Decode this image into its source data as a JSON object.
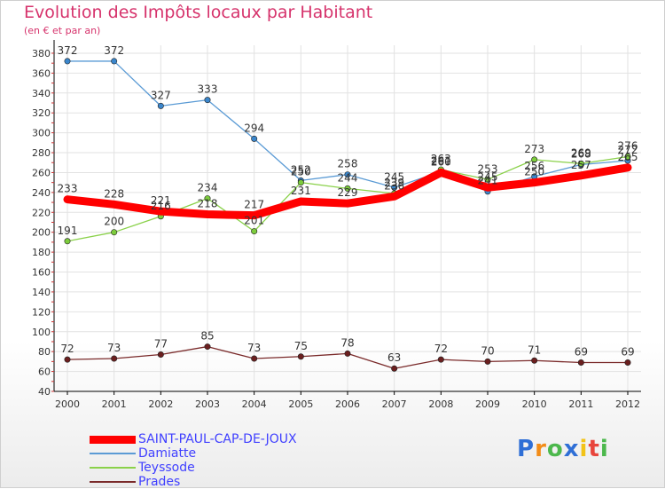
{
  "chart_data": {
    "type": "line",
    "title": "Evolution des Impôts locaux par Habitant",
    "subtitle": "(en € et par an)",
    "categories": [
      "2000",
      "2001",
      "2002",
      "2003",
      "2004",
      "2005",
      "2006",
      "2007",
      "2008",
      "2009",
      "2010",
      "2011",
      "2012"
    ],
    "yticks": [
      40,
      60,
      80,
      100,
      120,
      140,
      160,
      180,
      200,
      220,
      240,
      260,
      280,
      300,
      320,
      340,
      360,
      380
    ],
    "ylim": [
      40,
      388
    ],
    "series": [
      {
        "name": "Damiatte",
        "color": "#5b9bd5",
        "point_color": "#3a86cc",
        "values": [
          372,
          372,
          327,
          333,
          294,
          252,
          258,
          245,
          261,
          241,
          256,
          268,
          272
        ],
        "labels": [
          "372",
          "372",
          "327",
          "333",
          "294",
          "252",
          "258",
          "245",
          "261",
          "241",
          "256",
          "268",
          "272"
        ]
      },
      {
        "name": "Teyssode",
        "color": "#8ad14a",
        "point_color": "#7ccc3c",
        "values": [
          191,
          200,
          216,
          234,
          201,
          250,
          244,
          239,
          263,
          253,
          273,
          269,
          276
        ],
        "labels": [
          "191",
          "200",
          "216",
          "234",
          "201",
          "250",
          "244",
          "239",
          "263",
          "253",
          "273",
          "269",
          "276"
        ]
      },
      {
        "name": "Prades",
        "color": "#7a2a2a",
        "point_color": "#6b1f1f",
        "values": [
          72,
          73,
          77,
          85,
          73,
          75,
          78,
          63,
          72,
          70,
          71,
          69,
          69
        ],
        "labels": [
          "72",
          "73",
          "77",
          "85",
          "73",
          "75",
          "78",
          "63",
          "72",
          "70",
          "71",
          "69",
          "69"
        ]
      },
      {
        "name": "SAINT-PAUL-CAP-DE-JOUX",
        "color": "#ff0000",
        "point_color": "#ff0000",
        "values": [
          233,
          228,
          221,
          218,
          217,
          231,
          229,
          236,
          260,
          245,
          250,
          257,
          265
        ],
        "labels": [
          "233",
          "228",
          "221",
          "218",
          "217",
          "231",
          "229",
          "236",
          "260",
          "245",
          "250",
          "257",
          "265"
        ]
      }
    ],
    "legend": [
      {
        "name": "SAINT-PAUL-CAP-DE-JOUX",
        "color": "#ff0000",
        "thickness": 9
      },
      {
        "name": "Damiatte",
        "color": "#5b9bd5",
        "thickness": 2
      },
      {
        "name": "Teyssode",
        "color": "#8ad14a",
        "thickness": 2
      },
      {
        "name": "Prades",
        "color": "#7a2a2a",
        "thickness": 2
      }
    ]
  },
  "logo": {
    "letters": [
      "P",
      "r",
      "o",
      "x",
      "i",
      "t",
      "i"
    ],
    "colors": [
      "#2f6fd6",
      "#f28c18",
      "#4cb84c",
      "#2f6fd6",
      "#f2c318",
      "#e8453c",
      "#4cb84c"
    ]
  }
}
